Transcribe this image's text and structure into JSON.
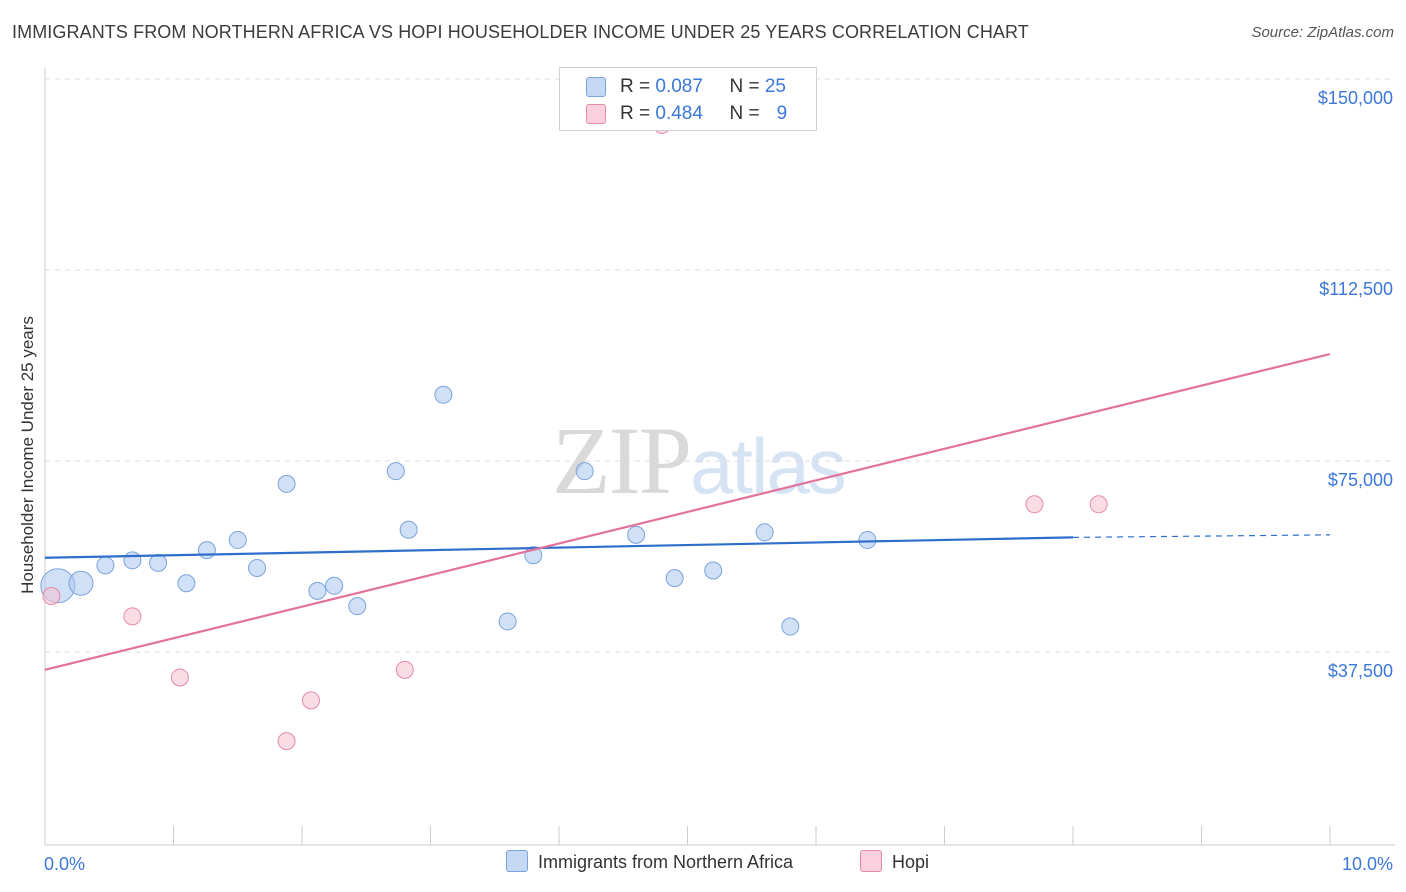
{
  "chart_data": {
    "type": "scatter",
    "title": "IMMIGRANTS FROM NORTHERN AFRICA VS HOPI HOUSEHOLDER INCOME UNDER 25 YEARS CORRELATION CHART",
    "source": "Source: ZipAtlas.com",
    "xlabel": "",
    "ylabel": "Householder Income Under 25 years",
    "xlim": [
      0,
      10
    ],
    "ylim": [
      0,
      155000
    ],
    "x_tick_labels": [
      "0.0%",
      "10.0%"
    ],
    "y_ticks": [
      {
        "value": 150000,
        "label": "$150,000"
      },
      {
        "value": 112500,
        "label": "$112,500"
      },
      {
        "value": 75000,
        "label": "$75,000"
      },
      {
        "value": 37500,
        "label": "$37,500"
      }
    ],
    "watermark": {
      "zip": "ZIP",
      "atlas": "atlas"
    },
    "legend": {
      "series1": {
        "r_label": "R = ",
        "r_value": "0.087",
        "n_label": "N = ",
        "n_value": "25"
      },
      "series2": {
        "r_label": "R = ",
        "r_value": "0.484",
        "n_label": "N = ",
        "n_value": "9"
      }
    },
    "series": [
      {
        "name": "Immigrants from Northern Africa",
        "color": "#a9c6ef",
        "stroke": "#7ba3dc",
        "line_color": "#2f6fcb",
        "trend": {
          "x0": 0.0,
          "y0": 56000,
          "x1": 8.0,
          "y1": 60000,
          "dash_to_x": 10.0,
          "dash_to_y": 60500
        },
        "points": [
          {
            "x": 0.1,
            "y": 50500,
            "size": "xl"
          },
          {
            "x": 0.28,
            "y": 51000,
            "size": "lg"
          },
          {
            "x": 0.47,
            "y": 54500
          },
          {
            "x": 0.68,
            "y": 55500
          },
          {
            "x": 0.88,
            "y": 55000
          },
          {
            "x": 1.1,
            "y": 51000
          },
          {
            "x": 1.26,
            "y": 57500
          },
          {
            "x": 1.5,
            "y": 59500
          },
          {
            "x": 1.65,
            "y": 54000
          },
          {
            "x": 1.88,
            "y": 70500
          },
          {
            "x": 2.12,
            "y": 49500
          },
          {
            "x": 2.25,
            "y": 50500
          },
          {
            "x": 2.43,
            "y": 46500
          },
          {
            "x": 2.73,
            "y": 73000
          },
          {
            "x": 2.83,
            "y": 61500
          },
          {
            "x": 3.1,
            "y": 88000
          },
          {
            "x": 3.6,
            "y": 43500
          },
          {
            "x": 3.8,
            "y": 56500
          },
          {
            "x": 4.2,
            "y": 73000
          },
          {
            "x": 4.6,
            "y": 60500
          },
          {
            "x": 4.9,
            "y": 52000
          },
          {
            "x": 5.2,
            "y": 53500
          },
          {
            "x": 5.6,
            "y": 61000
          },
          {
            "x": 5.8,
            "y": 42500
          },
          {
            "x": 6.4,
            "y": 59500
          }
        ]
      },
      {
        "name": "Hopi",
        "color": "#f6bfd0",
        "stroke": "#e68aa8",
        "line_color": "#e2729a",
        "trend": {
          "x0": 0.0,
          "y0": 34000,
          "x1": 10.0,
          "y1": 96000
        },
        "points": [
          {
            "x": 0.05,
            "y": 48500
          },
          {
            "x": 0.68,
            "y": 44500
          },
          {
            "x": 1.05,
            "y": 32500
          },
          {
            "x": 1.88,
            "y": 20000
          },
          {
            "x": 2.07,
            "y": 28000
          },
          {
            "x": 2.8,
            "y": 34000
          },
          {
            "x": 4.8,
            "y": 141000
          },
          {
            "x": 7.7,
            "y": 66500
          },
          {
            "x": 8.2,
            "y": 66500
          }
        ]
      }
    ]
  }
}
